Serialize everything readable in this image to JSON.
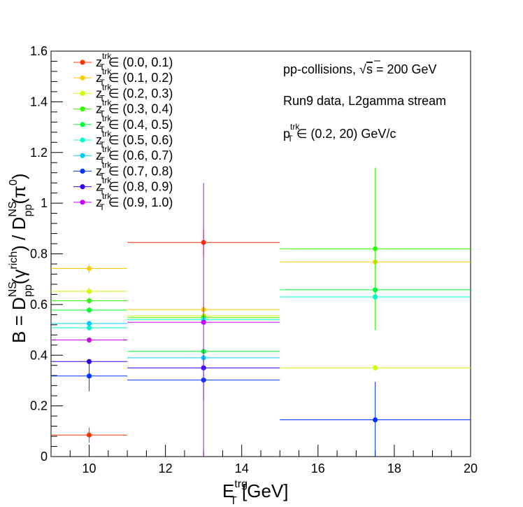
{
  "chart_data": {
    "type": "scatter",
    "xlim": [
      9,
      20
    ],
    "ylim": [
      0,
      1.6
    ],
    "x_ticks": [
      "10",
      "12",
      "14",
      "16",
      "18",
      "20"
    ],
    "y_ticks": [
      "0",
      "0.2",
      "0.4",
      "0.6",
      "0.8",
      "1",
      "1.2",
      "1.4",
      "1.6"
    ],
    "xlabel": {
      "main": "E",
      "sub": "T",
      "sup": "trg",
      "unit": " [GeV]"
    },
    "ylabel": {
      "text": "B = D^NS_pp(γ^rich) / D^NS_pp(π^0)"
    },
    "annotations": {
      "line1": {
        "prefix": "pp-collisions, ",
        "sqrt": "√",
        "s": "s",
        "suffix": " = 200 GeV"
      },
      "line2": "Run9 data, L2gamma stream",
      "line3": {
        "main": "p",
        "sub": "T",
        "sup": "trk",
        "suffix": " ∈ (0.2, 20) GeV/c"
      }
    },
    "legend_placement": "top-left",
    "bins": [
      {
        "x": 10,
        "xlo": 9,
        "xhi": 11
      },
      {
        "x": 13,
        "xlo": 11,
        "xhi": 15
      },
      {
        "x": 17.5,
        "xlo": 15,
        "xhi": 20
      }
    ],
    "series": [
      {
        "name": "(0.0, 0.1)",
        "color": "#ff3300",
        "points": [
          {
            "y": 0.085,
            "err": 0.03
          },
          {
            "y": 0.845,
            "err": 0.055
          },
          {
            "y": 0.63,
            "err": 0.0
          }
        ]
      },
      {
        "name": "(0.1, 0.2)",
        "color": "#ffcc00",
        "points": [
          {
            "y": 0.742,
            "err": 0.018
          },
          {
            "y": 0.58,
            "err": 0.01
          },
          {
            "y": 0.768,
            "err": 0.01
          }
        ]
      },
      {
        "name": "(0.2, 0.3)",
        "color": "#ccff00",
        "points": [
          {
            "y": 0.652,
            "err": 0.015
          },
          {
            "y": 0.555,
            "err": 0.01
          },
          {
            "y": 0.35,
            "err": 0.01
          }
        ]
      },
      {
        "name": "(0.3, 0.4)",
        "color": "#33ff00",
        "points": [
          {
            "y": 0.615,
            "err": 0.012
          },
          {
            "y": 0.548,
            "err": 0.01
          },
          {
            "y": 0.82,
            "err": 0.32
          }
        ]
      },
      {
        "name": "(0.4, 0.5)",
        "color": "#00ff33",
        "points": [
          {
            "y": 0.578,
            "err": 0.01
          },
          {
            "y": 0.415,
            "err": 0.01
          },
          {
            "y": 0.658,
            "err": 0.01
          }
        ]
      },
      {
        "name": "(0.5, 0.6)",
        "color": "#00ffcc",
        "points": [
          {
            "y": 0.508,
            "err": 0.01
          },
          {
            "y": 0.54,
            "err": 0.01
          },
          {
            "y": 0.63,
            "err": 0.0
          }
        ]
      },
      {
        "name": "(0.6, 0.7)",
        "color": "#00ccff",
        "points": [
          {
            "y": 0.525,
            "err": 0.01
          },
          {
            "y": 0.39,
            "err": 0.01
          },
          {
            "y": 0.0,
            "err": 0.0
          }
        ]
      },
      {
        "name": "(0.7, 0.8)",
        "color": "#0033ff",
        "points": [
          {
            "y": 0.318,
            "err": 0.06
          },
          {
            "y": 0.302,
            "err": 0.08
          },
          {
            "y": 0.145,
            "err": 0.15
          }
        ]
      },
      {
        "name": "(0.8, 0.9)",
        "color": "#3300ff",
        "points": [
          {
            "y": 0.375,
            "err": 0.01
          },
          {
            "y": 0.35,
            "err": 0.01
          },
          {
            "y": 0.0,
            "err": 0.0
          }
        ]
      },
      {
        "name": "(0.9, 1.0)",
        "color": "#cc00ff",
        "points": [
          {
            "y": 0.46,
            "err": 0.01
          },
          {
            "y": 0.53,
            "err": 0.55
          },
          {
            "y": 0.0,
            "err": 0.0
          }
        ]
      }
    ],
    "legend_label": {
      "main": "z",
      "sub": "T",
      "sup": "trk",
      "sym": " ∈ "
    }
  }
}
